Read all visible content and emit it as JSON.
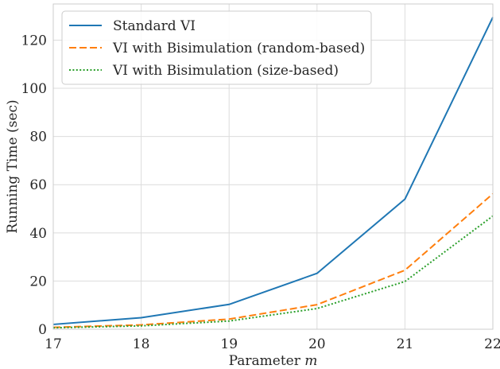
{
  "chart_data": {
    "type": "line",
    "title": "",
    "xlabel": "Parameter m",
    "xlabel_parts": {
      "text": "Parameter ",
      "var": "m"
    },
    "ylabel": "Running Time (sec)",
    "x": [
      17,
      18,
      19,
      20,
      21,
      22
    ],
    "xlim": [
      17,
      22
    ],
    "ylim": [
      0,
      135
    ],
    "xticks": [
      17,
      18,
      19,
      20,
      21,
      22
    ],
    "yticks": [
      0,
      20,
      40,
      60,
      80,
      100,
      120
    ],
    "grid": true,
    "legend_position": "top-left",
    "series": [
      {
        "name": "Standard VI",
        "color": "#1f77b4",
        "dash": "solid",
        "values": [
          2.0,
          4.8,
          10.3,
          23.2,
          54.0,
          129.5
        ]
      },
      {
        "name": "VI with Bisimulation (random-based)",
        "color": "#ff7f0e",
        "dash": "dashed",
        "values": [
          0.8,
          1.8,
          4.2,
          10.2,
          24.5,
          56.2
        ]
      },
      {
        "name": "VI with Bisimulation (size-based)",
        "color": "#2ca02c",
        "dash": "dotted",
        "values": [
          0.6,
          1.4,
          3.4,
          8.6,
          19.8,
          47.0
        ]
      }
    ]
  }
}
